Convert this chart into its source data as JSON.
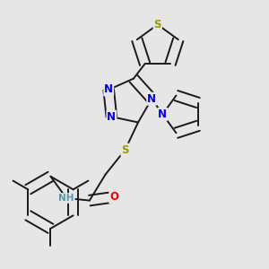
{
  "bg_color": "#e6e6e6",
  "bond_color": "#1a1a1a",
  "bond_width": 1.4,
  "dbo": 0.018,
  "atom_colors": {
    "N": "#0000ee",
    "S": "#999900",
    "O": "#ee0000",
    "H": "#5599aa",
    "C": "#1a1a1a"
  },
  "fs": 8.5
}
